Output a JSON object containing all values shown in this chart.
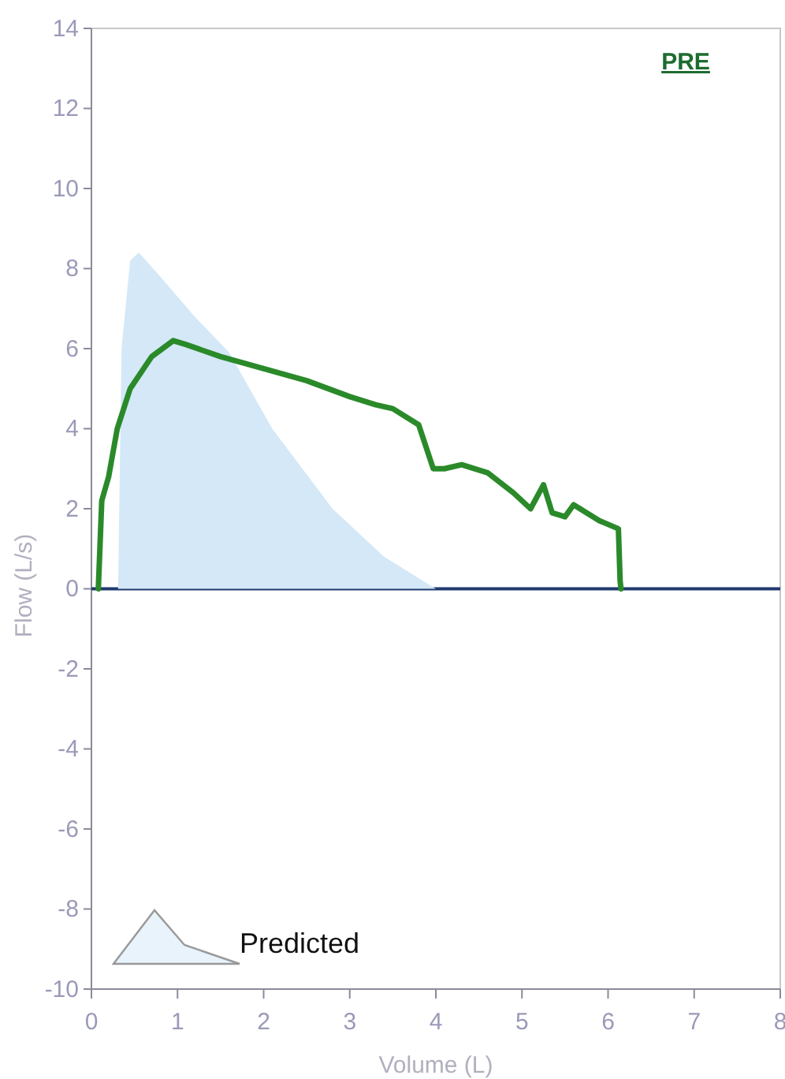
{
  "chart_data": {
    "type": "line",
    "title": "PRE",
    "xlabel": "Volume (L)",
    "ylabel": "Flow (L/s)",
    "xlim": [
      0,
      8
    ],
    "xticks": [
      0,
      1,
      2,
      3,
      4,
      5,
      6,
      7,
      8
    ],
    "ylim": [
      -10,
      14
    ],
    "yticks": [
      -10,
      -8,
      -6,
      -4,
      -2,
      0,
      2,
      4,
      6,
      8,
      10,
      12,
      14
    ],
    "grid": false,
    "legend": "bottom left",
    "ref_lines": [
      {
        "axis": "y",
        "value": 0,
        "color": "#1f3a6e"
      }
    ],
    "series": [
      {
        "name": "Predicted",
        "type": "area",
        "color": "#d4e8f7",
        "x": [
          0.31,
          0.35,
          0.45,
          0.55,
          0.8,
          1.2,
          1.6,
          2.1,
          2.8,
          3.4,
          4.0
        ],
        "values": [
          0,
          6,
          8.2,
          8.4,
          7.8,
          6.8,
          5.9,
          4.0,
          2.0,
          0.8,
          0
        ]
      },
      {
        "color": "#2a8a2a",
        "x": [
          0.08,
          0.12,
          0.2,
          0.3,
          0.45,
          0.7,
          0.95,
          1.1,
          1.5,
          2,
          2.5,
          3,
          3.3,
          3.5,
          3.8,
          3.97,
          4.1,
          4.3,
          4.6,
          4.9,
          5.1,
          5.25,
          5.35,
          5.5,
          5.6,
          5.9,
          6.12,
          6.14,
          6.15
        ],
        "values": [
          0,
          2.2,
          2.8,
          4,
          5,
          5.8,
          6.2,
          6.1,
          5.8,
          5.5,
          5.2,
          4.8,
          4.6,
          4.5,
          4.1,
          3.0,
          3.0,
          3.1,
          2.9,
          2.4,
          2.0,
          2.6,
          1.9,
          1.8,
          2.1,
          1.7,
          1.5,
          0.2,
          0
        ]
      }
    ]
  }
}
